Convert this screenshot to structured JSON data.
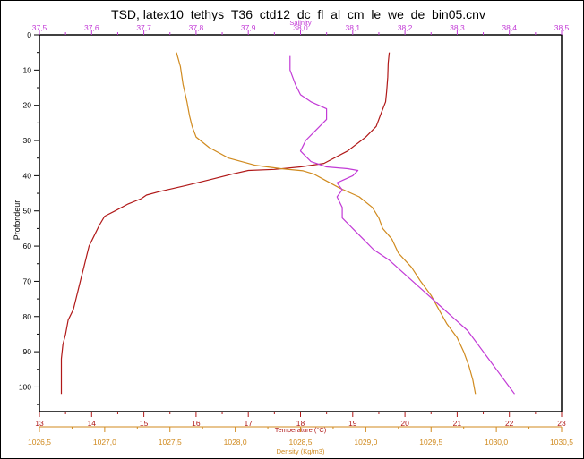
{
  "colors": {
    "temperature": "#b01818",
    "density": "#d08a1e",
    "salinity": "#c23ad6",
    "axis": "#000000"
  },
  "chart_data": {
    "type": "line",
    "title": "TSD, latex10_tethys_T36_ctd12_dc_fl_al_cm_le_we_de_bin05.cnv",
    "ylabel": "Profondeur",
    "y_axis": {
      "label": "Profondeur",
      "inverted": true,
      "range": [
        0,
        107
      ],
      "ticks": [
        0,
        10,
        20,
        30,
        40,
        50,
        60,
        70,
        80,
        90,
        100
      ]
    },
    "x_axes": [
      {
        "key": "salinity",
        "label": "Salinity",
        "position": "top",
        "range": [
          37.5,
          38.5
        ],
        "ticks": [
          "37,5",
          "37,6",
          "37,7",
          "37,8",
          "37,9",
          "38,0",
          "38,1",
          "38,2",
          "38,3",
          "38,4",
          "38,5"
        ]
      },
      {
        "key": "temperature",
        "label": "Temperature (°C)",
        "position": "bottom",
        "range": [
          13,
          23
        ],
        "ticks": [
          "13",
          "14",
          "15",
          "16",
          "17",
          "18",
          "19",
          "20",
          "21",
          "22",
          "23"
        ]
      },
      {
        "key": "density",
        "label": "Density  (Kg/m3)",
        "position": "bottom",
        "range": [
          1026.5,
          1030.5
        ],
        "ticks": [
          "1026,5",
          "1027,0",
          "1027,5",
          "1028,0",
          "1028,5",
          "1029,0",
          "1029,5",
          "1030,0",
          "1030,5"
        ]
      }
    ],
    "series": [
      {
        "key": "temperature",
        "axis": "temperature",
        "points": [
          [
            19.7,
            5
          ],
          [
            19.68,
            8
          ],
          [
            19.67,
            12
          ],
          [
            19.65,
            16
          ],
          [
            19.63,
            19
          ],
          [
            19.55,
            22
          ],
          [
            19.45,
            26
          ],
          [
            19.25,
            29
          ],
          [
            18.9,
            33
          ],
          [
            18.45,
            36.5
          ],
          [
            18.0,
            37.5
          ],
          [
            17.5,
            38.2
          ],
          [
            17.0,
            38.5
          ],
          [
            16.7,
            39.5
          ],
          [
            16.3,
            41
          ],
          [
            15.8,
            42.8
          ],
          [
            15.3,
            44.5
          ],
          [
            15.05,
            45.5
          ],
          [
            14.95,
            46.5
          ],
          [
            14.7,
            48
          ],
          [
            14.45,
            50
          ],
          [
            14.25,
            51.5
          ],
          [
            14.15,
            54
          ],
          [
            14.05,
            57
          ],
          [
            13.95,
            60
          ],
          [
            13.9,
            63
          ],
          [
            13.85,
            66
          ],
          [
            13.8,
            69
          ],
          [
            13.75,
            72
          ],
          [
            13.7,
            75
          ],
          [
            13.65,
            78
          ],
          [
            13.55,
            81
          ],
          [
            13.5,
            85
          ],
          [
            13.45,
            88
          ],
          [
            13.42,
            92
          ],
          [
            13.42,
            96
          ],
          [
            13.42,
            100
          ],
          [
            13.42,
            102
          ]
        ]
      },
      {
        "key": "density",
        "axis": "density",
        "points": [
          [
            1027.55,
            5
          ],
          [
            1027.58,
            9
          ],
          [
            1027.6,
            14
          ],
          [
            1027.63,
            19
          ],
          [
            1027.65,
            23
          ],
          [
            1027.67,
            26
          ],
          [
            1027.7,
            29
          ],
          [
            1027.8,
            32
          ],
          [
            1027.95,
            35
          ],
          [
            1028.15,
            37
          ],
          [
            1028.35,
            38
          ],
          [
            1028.52,
            38.6
          ],
          [
            1028.6,
            39.5
          ],
          [
            1028.7,
            41.5
          ],
          [
            1028.8,
            43.5
          ],
          [
            1028.95,
            46
          ],
          [
            1029.05,
            49
          ],
          [
            1029.1,
            52
          ],
          [
            1029.13,
            55
          ],
          [
            1029.2,
            58
          ],
          [
            1029.25,
            62
          ],
          [
            1029.35,
            66
          ],
          [
            1029.42,
            70
          ],
          [
            1029.5,
            74
          ],
          [
            1029.56,
            78
          ],
          [
            1029.62,
            82
          ],
          [
            1029.7,
            86
          ],
          [
            1029.75,
            90
          ],
          [
            1029.79,
            94
          ],
          [
            1029.82,
            98
          ],
          [
            1029.84,
            102
          ]
        ]
      },
      {
        "key": "salinity",
        "axis": "salinity",
        "points": [
          [
            37.98,
            6
          ],
          [
            37.98,
            10
          ],
          [
            37.99,
            14
          ],
          [
            38.0,
            17
          ],
          [
            38.02,
            19
          ],
          [
            38.05,
            21
          ],
          [
            38.05,
            24
          ],
          [
            38.03,
            27
          ],
          [
            38.01,
            30
          ],
          [
            38.0,
            33
          ],
          [
            38.02,
            36
          ],
          [
            38.05,
            37.5
          ],
          [
            38.09,
            38
          ],
          [
            38.11,
            38.5
          ],
          [
            38.1,
            40
          ],
          [
            38.07,
            42
          ],
          [
            38.08,
            44
          ],
          [
            38.07,
            46
          ],
          [
            38.08,
            49
          ],
          [
            38.08,
            52
          ],
          [
            38.1,
            55
          ],
          [
            38.12,
            58
          ],
          [
            38.14,
            61
          ],
          [
            38.17,
            64
          ],
          [
            38.2,
            68
          ],
          [
            38.23,
            72
          ],
          [
            38.26,
            76
          ],
          [
            38.29,
            80
          ],
          [
            38.32,
            84
          ],
          [
            38.34,
            88
          ],
          [
            38.36,
            92
          ],
          [
            38.38,
            96
          ],
          [
            38.4,
            100
          ],
          [
            38.41,
            102
          ]
        ]
      }
    ]
  }
}
